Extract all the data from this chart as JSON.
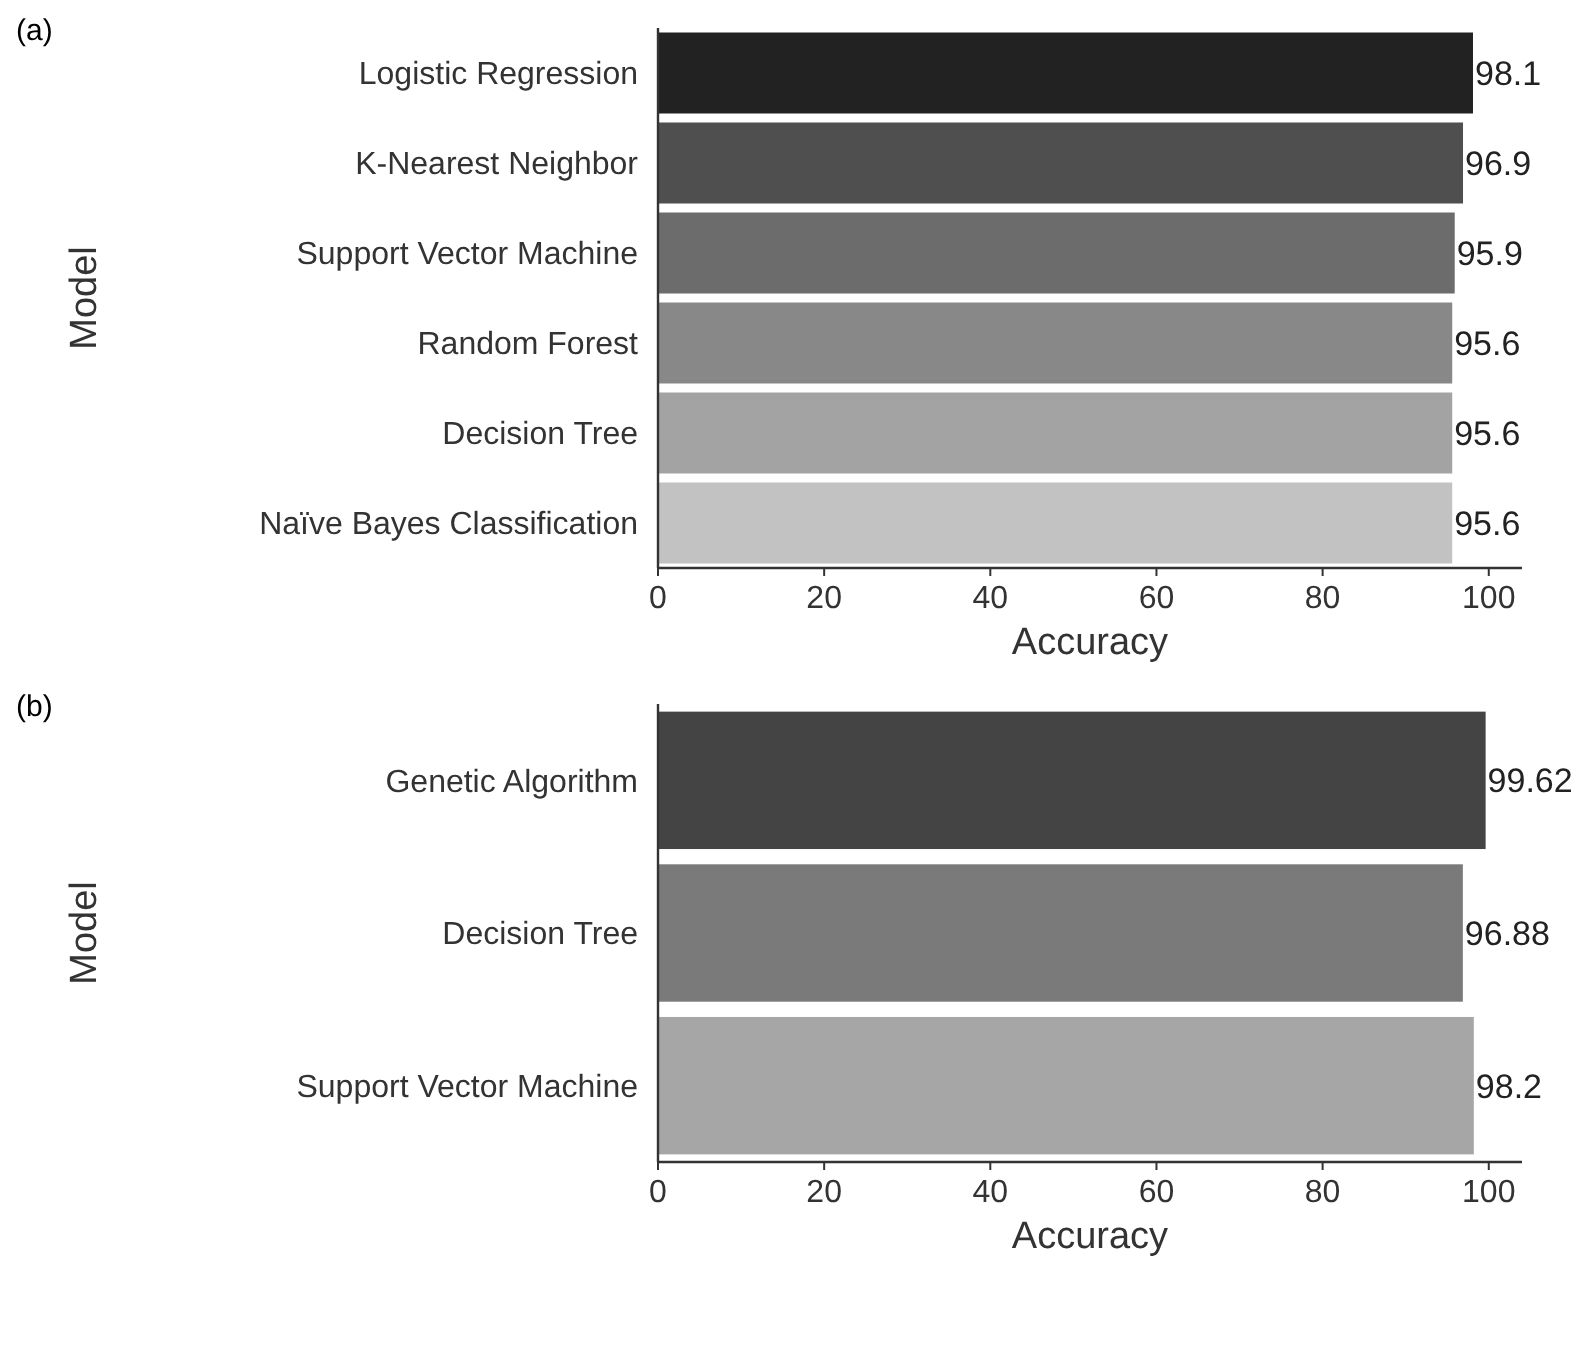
{
  "chart_data": [
    {
      "type": "bar",
      "orientation": "horizontal",
      "annotations": [
        "(a)"
      ],
      "xlabel": "Accuracy",
      "ylabel": "Model",
      "categories": [
        "Logistic Regression",
        "K-Nearest Neighbor",
        "Support Vector Machine",
        "Random Forest",
        "Decision Tree",
        "Naïve Bayes Classification"
      ],
      "values": [
        98.1,
        96.9,
        95.9,
        95.6,
        95.6,
        95.6
      ],
      "colors": [
        "#222222",
        "#4f4f4f",
        "#6c6c6c",
        "#888888",
        "#a3a3a3",
        "#c2c2c2"
      ],
      "xlim": [
        0,
        104
      ],
      "xticks": [
        0,
        20,
        40,
        60,
        80,
        100
      ],
      "data_labels": true,
      "grid": false
    },
    {
      "type": "bar",
      "orientation": "horizontal",
      "annotations": [
        "(b)"
      ],
      "xlabel": "Accuracy",
      "ylabel": "Model",
      "categories": [
        "Genetic Algorithm",
        "Decision Tree",
        "Support Vector Machine"
      ],
      "values": [
        99.62,
        96.88,
        98.2
      ],
      "colors": [
        "#444444",
        "#7a7a7a",
        "#a6a6a6"
      ],
      "xlim": [
        0,
        104
      ],
      "xticks": [
        0,
        20,
        40,
        60,
        80,
        100
      ],
      "data_labels": true,
      "grid": false
    }
  ]
}
